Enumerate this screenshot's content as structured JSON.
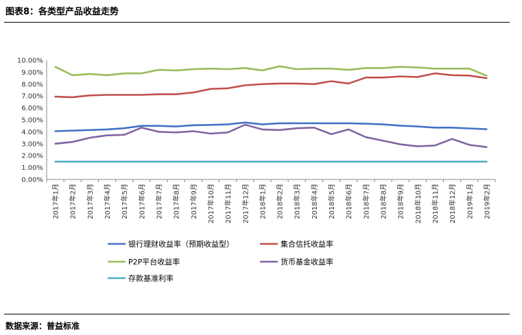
{
  "header": {
    "title": "图表8：各类型产品收益走势"
  },
  "footer": {
    "source": "数据来源：普益标准"
  },
  "chart_data": {
    "type": "line",
    "title": "各类型产品收益走势",
    "ylim": [
      0,
      10
    ],
    "yticks": [
      "0.00%",
      "1.00%",
      "2.00%",
      "3.00%",
      "4.00%",
      "5.00%",
      "6.00%",
      "7.00%",
      "8.00%",
      "9.00%",
      "10.00%"
    ],
    "categories": [
      "2017年1月",
      "2017年2月",
      "2017年3月",
      "2017年4月",
      "2017年5月",
      "2017年6月",
      "2017年7月",
      "2017年8月",
      "2017年9月",
      "2017年10月",
      "2017年11月",
      "2017年12月",
      "2018年1月",
      "2018年2月",
      "2018年3月",
      "2018年4月",
      "2018年5月",
      "2018年6月",
      "2018年7月",
      "2018年8月",
      "2018年9月",
      "2018年10月",
      "2018年11月",
      "2018年12月",
      "2019年1月",
      "2019年2月"
    ],
    "series": [
      {
        "name": "银行理财收益率（预期收益型）",
        "color": "#4472C4",
        "values": [
          4.05,
          4.1,
          4.15,
          4.2,
          4.3,
          4.5,
          4.5,
          4.45,
          4.55,
          4.58,
          4.62,
          4.78,
          4.62,
          4.72,
          4.72,
          4.72,
          4.72,
          4.72,
          4.68,
          4.62,
          4.52,
          4.45,
          4.35,
          4.35,
          4.28,
          4.22
        ]
      },
      {
        "name": "集合信托收益率",
        "color": "#C0504D",
        "values": [
          6.95,
          6.9,
          7.05,
          7.1,
          7.1,
          7.1,
          7.15,
          7.15,
          7.3,
          7.6,
          7.65,
          7.9,
          8.0,
          8.05,
          8.05,
          8.0,
          8.25,
          8.05,
          8.55,
          8.55,
          8.65,
          8.6,
          8.9,
          8.75,
          8.72,
          8.5
        ]
      },
      {
        "name": "P2P平台收益率",
        "color": "#9BBB59",
        "values": [
          9.45,
          8.75,
          8.85,
          8.75,
          8.9,
          8.9,
          9.2,
          9.15,
          9.25,
          9.3,
          9.25,
          9.35,
          9.15,
          9.5,
          9.25,
          9.3,
          9.3,
          9.2,
          9.35,
          9.35,
          9.45,
          9.4,
          9.3,
          9.3,
          9.3,
          8.7
        ]
      },
      {
        "name": "货币基金收益率",
        "color": "#8064A2",
        "values": [
          3.0,
          3.15,
          3.5,
          3.7,
          3.75,
          4.35,
          4.0,
          3.95,
          4.05,
          3.85,
          3.95,
          4.6,
          4.2,
          4.15,
          4.3,
          4.35,
          3.8,
          4.2,
          3.55,
          3.25,
          2.95,
          2.78,
          2.85,
          3.4,
          2.9,
          2.72
        ]
      },
      {
        "name": "存款基准利率",
        "color": "#4BACC6",
        "values": [
          1.5,
          1.5,
          1.5,
          1.5,
          1.5,
          1.5,
          1.5,
          1.5,
          1.5,
          1.5,
          1.5,
          1.5,
          1.5,
          1.5,
          1.5,
          1.5,
          1.5,
          1.5,
          1.5,
          1.5,
          1.5,
          1.5,
          1.5,
          1.5,
          1.5,
          1.5
        ]
      }
    ]
  }
}
